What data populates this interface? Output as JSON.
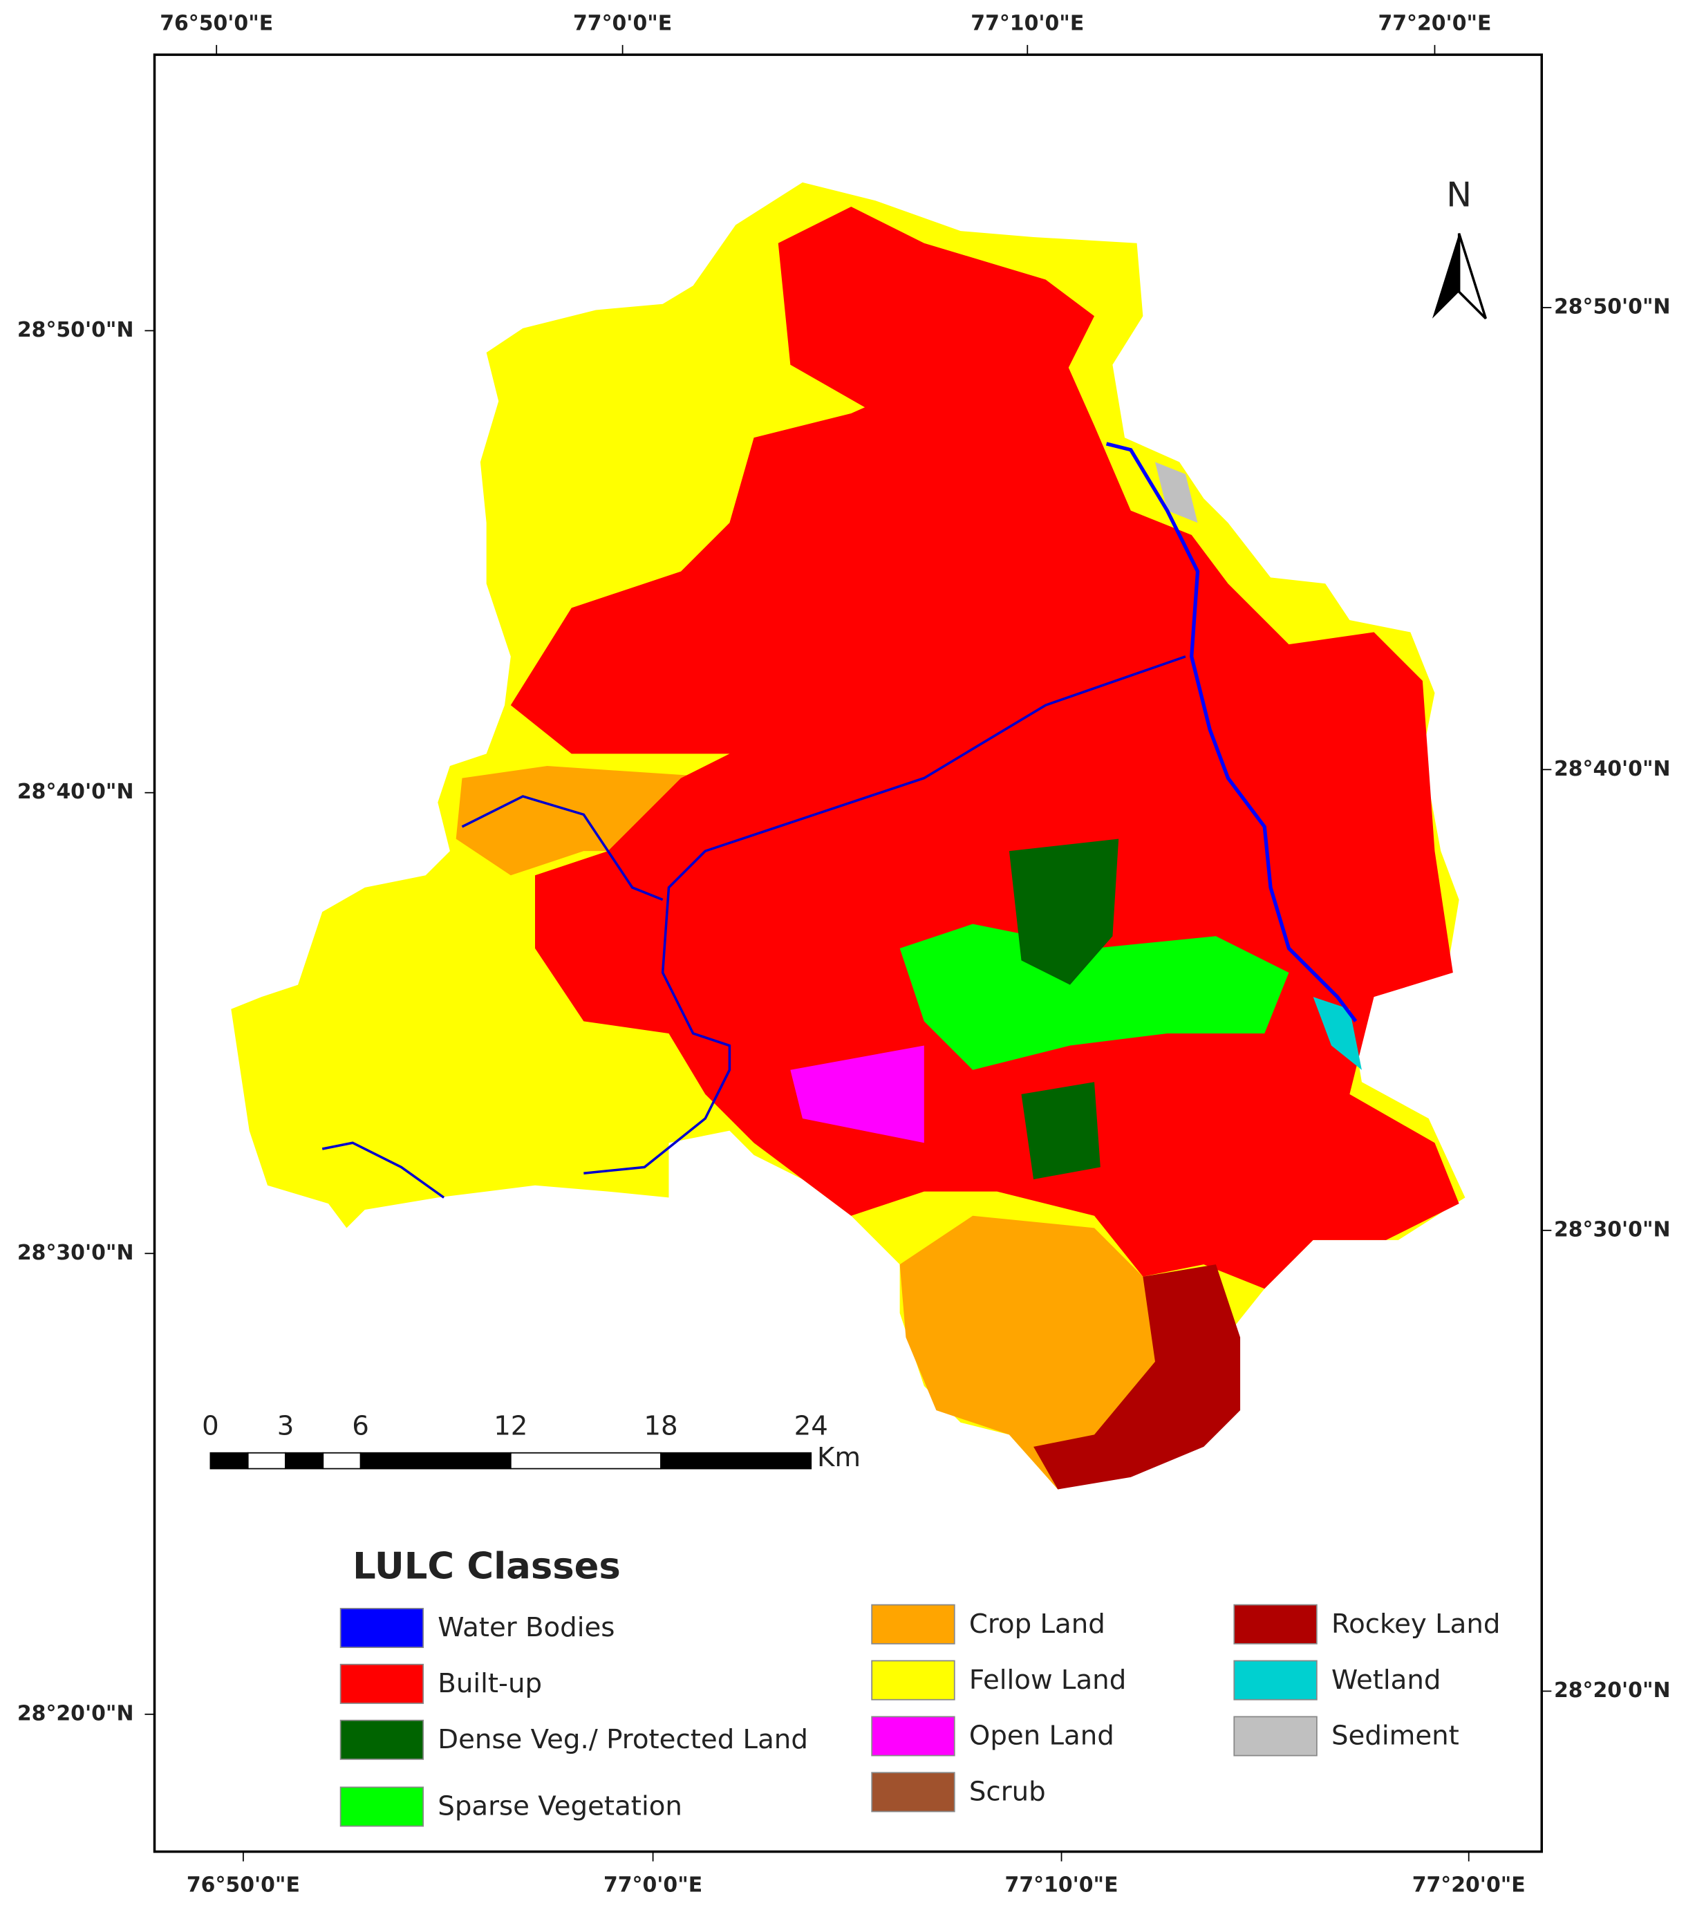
{
  "map": {
    "top_labels": [
      "76°50'0\"E",
      "77°0'0\"E",
      "77°10'0\"E",
      "77°20'0\"E"
    ],
    "bottom_labels": [
      "76°50'0\"E",
      "77°0'0\"E",
      "77°10'0\"E",
      "77°20'0\"E"
    ],
    "left_labels": [
      "28°50'0\"N",
      "28°40'0\"N",
      "28°30'0\"N",
      "28°20'0\"N"
    ],
    "right_labels": [
      "28°50'0\"N",
      "28°40'0\"N",
      "28°30'0\"N",
      "28°20'0\"N"
    ],
    "north": "N",
    "scale_bar": {
      "ticks": [
        0,
        3,
        6,
        12,
        18,
        24
      ],
      "unit": "Km"
    },
    "legend": {
      "title": "LULC Classes",
      "columns": [
        [
          {
            "label": "Water Bodies",
            "color": "#0000ff"
          },
          {
            "label": "Built-up",
            "color": "#ff0000"
          },
          {
            "label": "Dense Veg./ Protected Land",
            "color": "#006400"
          },
          {
            "label": "Sparse Vegetation",
            "color": "#00ff00"
          }
        ],
        [
          {
            "label": "Crop Land",
            "color": "#ffa500"
          },
          {
            "label": "Fellow Land",
            "color": "#ffff00"
          },
          {
            "label": "Open Land",
            "color": "#ff00ff"
          },
          {
            "label": "Scrub",
            "color": "#a0522d"
          }
        ],
        [
          {
            "label": "Rockey Land",
            "color": "#b00000"
          },
          {
            "label": "Wetland",
            "color": "#00d0d0"
          },
          {
            "label": "Sediment",
            "color": "#c0c0c0"
          }
        ]
      ]
    }
  }
}
